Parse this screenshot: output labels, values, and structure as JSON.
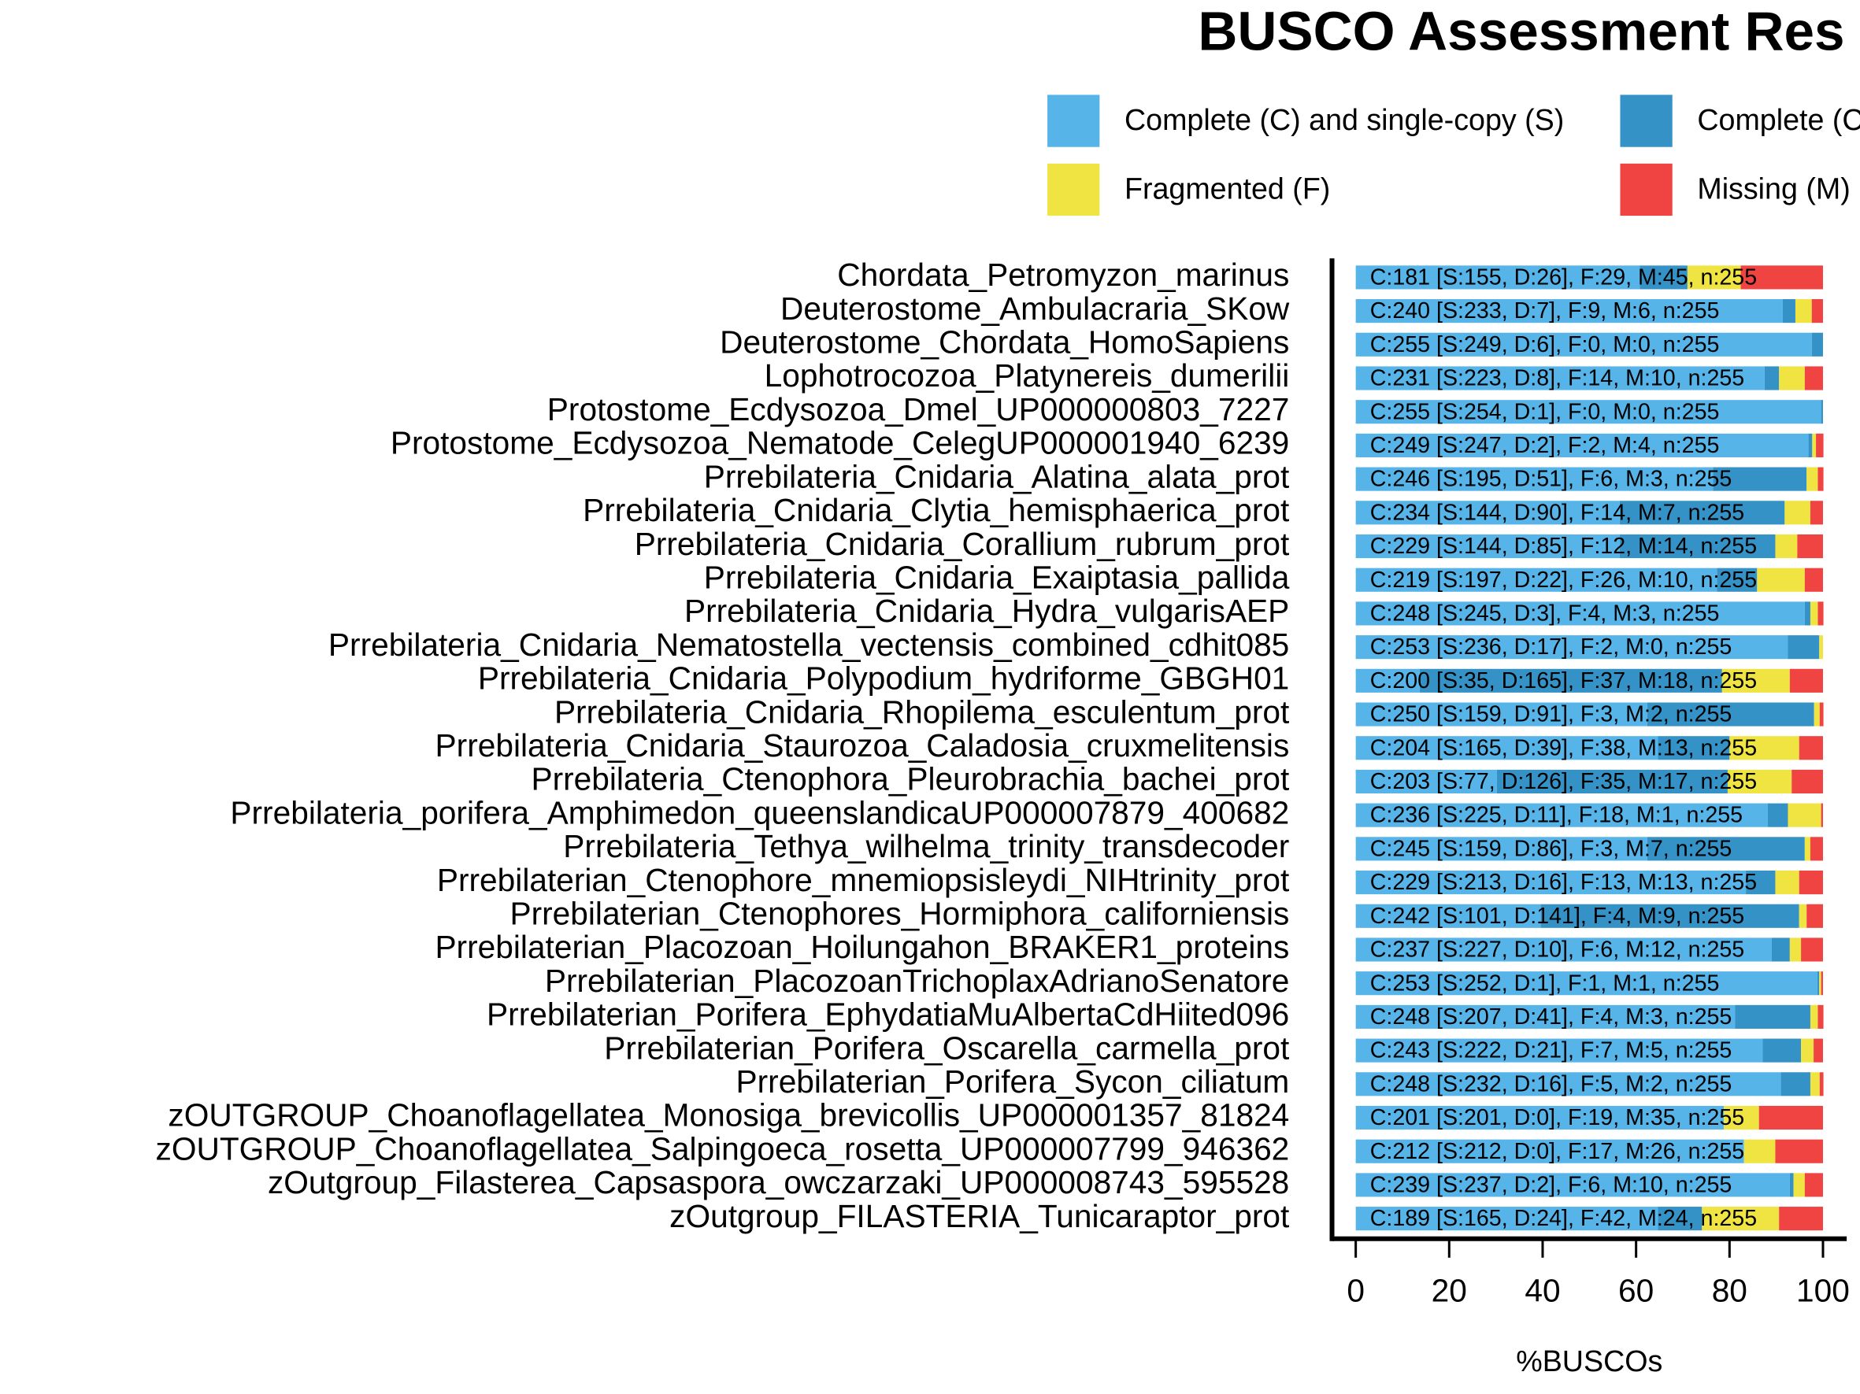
{
  "chart_data": {
    "type": "stacked_barh",
    "title": "BUSCO Assessment Res",
    "xlabel": "%BUSCOs",
    "xlim": [
      0,
      100
    ],
    "xticks": [
      0,
      20,
      40,
      60,
      80,
      100
    ],
    "legend": "top",
    "categories": [
      "Chordata_Petromyzon_marinus",
      "Deuterostome_Ambulacraria_SKow",
      "Deuterostome_Chordata_HomoSapiens",
      "Lophotrocozoa_Platynereis_dumerilii",
      "Protostome_Ecdysozoa_Dmel_UP000000803_7227",
      "Protostome_Ecdysozoa_Nematode_CelegUP000001940_6239",
      "Prrebilateria_Cnidaria_Alatina_alata_prot",
      "Prrebilateria_Cnidaria_Clytia_hemisphaerica_prot",
      "Prrebilateria_Cnidaria_Corallium_rubrum_prot",
      "Prrebilateria_Cnidaria_Exaiptasia_pallida",
      "Prrebilateria_Cnidaria_Hydra_vulgarisAEP",
      "Prrebilateria_Cnidaria_Nematostella_vectensis_combined_cdhit085",
      "Prrebilateria_Cnidaria_Polypodium_hydriforme_GBGH01",
      "Prrebilateria_Cnidaria_Rhopilema_esculentum_prot",
      "Prrebilateria_Cnidaria_Staurozoa_Caladosia_cruxmelitensis",
      "Prrebilateria_Ctenophora_Pleurobrachia_bachei_prot",
      "Prrebilateria_porifera_Amphimedon_queenslandicaUP000007879_400682",
      "Prrebilateria_Tethya_wilhelma_trinity_transdecoder",
      "Prrebilaterian_Ctenophore_mnemiopsisleydi_NIHtrinity_prot",
      "Prrebilaterian_Ctenophores_Hormiphora_californiensis",
      "Prrebilaterian_Placozoan_Hoilungahon_BRAKER1_proteins",
      "Prrebilaterian_PlacozoanTrichoplaxAdrianoSenatore",
      "Prrebilaterian_Porifera_EphydatiaMuAlbertaCdHiited096",
      "Prrebilaterian_Porifera_Oscarella_carmella_prot",
      "Prrebilaterian_Porifera_Sycon_ciliatum",
      "zOUTGROUP_Choanoflagellatea_Monosiga_brevicollis_UP000001357_81824",
      "zOUTGROUP_Choanoflagellatea_Salpingoeca_rosetta_UP000007799_946362",
      "zOutgroup_Filasterea_Capsaspora_owczarzaki_UP000008743_595528",
      "zOutgroup_FILASTERIA_Tunicaraptor_prot"
    ],
    "series": [
      {
        "name": "Complete (C) and single-copy (S)",
        "color": "#56B4E9",
        "values": [
          60.8,
          91.4,
          97.6,
          87.5,
          99.6,
          96.9,
          76.5,
          56.5,
          56.5,
          77.3,
          96.1,
          92.5,
          13.7,
          62.4,
          64.7,
          30.2,
          88.2,
          62.4,
          83.5,
          39.6,
          89.0,
          98.8,
          81.2,
          87.1,
          91.0,
          78.8,
          83.1,
          92.9,
          64.7
        ]
      },
      {
        "name": "Complete (C",
        "color": "#3492C7",
        "values": [
          10.2,
          2.7,
          2.4,
          3.1,
          0.4,
          0.8,
          20.0,
          35.3,
          33.3,
          8.6,
          1.2,
          6.7,
          64.7,
          35.7,
          15.3,
          49.4,
          4.3,
          33.7,
          6.3,
          55.3,
          3.9,
          0.4,
          16.1,
          8.2,
          6.3,
          0,
          0,
          0.8,
          9.4
        ]
      },
      {
        "name": "Fragmented (F)",
        "color": "#F0E442",
        "values": [
          11.4,
          3.5,
          0,
          5.5,
          0,
          0.8,
          2.4,
          5.5,
          4.7,
          10.2,
          1.6,
          0.8,
          14.5,
          1.2,
          14.9,
          13.7,
          7.1,
          1.2,
          5.1,
          1.6,
          2.4,
          0.4,
          1.6,
          2.7,
          2.0,
          7.5,
          6.7,
          2.4,
          16.5
        ]
      },
      {
        "name": "Missing (M)",
        "color": "#F04442",
        "values": [
          17.6,
          2.4,
          0,
          3.9,
          0,
          1.6,
          1.2,
          2.7,
          5.5,
          3.9,
          1.2,
          0,
          7.1,
          0.8,
          5.1,
          6.7,
          0.4,
          2.7,
          5.1,
          3.5,
          4.7,
          0.4,
          1.2,
          2.0,
          0.8,
          13.7,
          10.2,
          3.9,
          9.4
        ]
      }
    ],
    "bar_labels": [
      "C:181 [S:155, D:26], F:29, M:45, n:255",
      "C:240 [S:233, D:7], F:9, M:6, n:255",
      "C:255 [S:249, D:6], F:0, M:0, n:255",
      "C:231 [S:223, D:8], F:14, M:10, n:255",
      "C:255 [S:254, D:1], F:0, M:0, n:255",
      "C:249 [S:247, D:2], F:2, M:4, n:255",
      "C:246 [S:195, D:51], F:6, M:3, n:255",
      "C:234 [S:144, D:90], F:14, M:7, n:255",
      "C:229 [S:144, D:85], F:12, M:14, n:255",
      "C:219 [S:197, D:22], F:26, M:10, n:255",
      "C:248 [S:245, D:3], F:4, M:3, n:255",
      "C:253 [S:236, D:17], F:2, M:0, n:255",
      "C:200 [S:35, D:165], F:37, M:18, n:255",
      "C:250 [S:159, D:91], F:3, M:2, n:255",
      "C:204 [S:165, D:39], F:38, M:13, n:255",
      "C:203 [S:77, D:126], F:35, M:17, n:255",
      "C:236 [S:225, D:11], F:18, M:1, n:255",
      "C:245 [S:159, D:86], F:3, M:7, n:255",
      "C:229 [S:213, D:16], F:13, M:13, n:255",
      "C:242 [S:101, D:141], F:4, M:9, n:255",
      "C:237 [S:227, D:10], F:6, M:12, n:255",
      "C:253 [S:252, D:1], F:1, M:1, n:255",
      "C:248 [S:207, D:41], F:4, M:3, n:255",
      "C:243 [S:222, D:21], F:7, M:5, n:255",
      "C:248 [S:232, D:16], F:5, M:2, n:255",
      "C:201 [S:201, D:0], F:19, M:35, n:255",
      "C:212 [S:212, D:0], F:17, M:26, n:255",
      "C:239 [S:237, D:2], F:6, M:10, n:255",
      "C:189 [S:165, D:24], F:42, M:24, n:255"
    ]
  }
}
